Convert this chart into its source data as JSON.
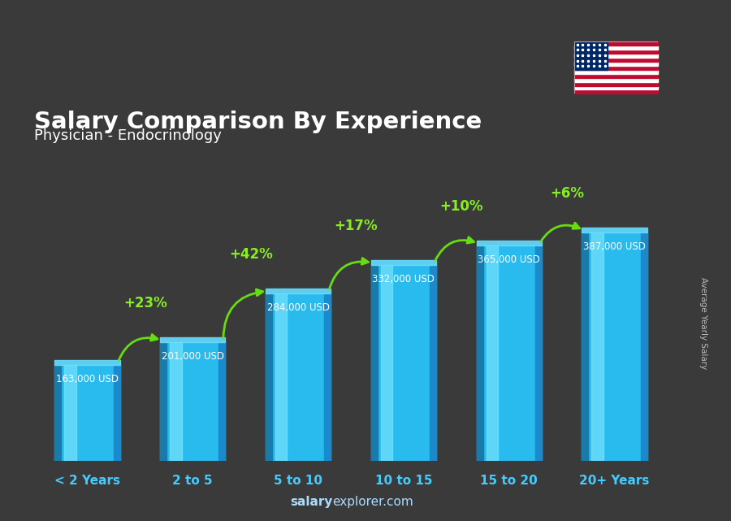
{
  "title_line1": "Salary Comparison By Experience",
  "title_line2": "Physician - Endocrinology",
  "categories": [
    "< 2 Years",
    "2 to 5",
    "5 to 10",
    "10 to 15",
    "15 to 20",
    "20+ Years"
  ],
  "values": [
    163000,
    201000,
    284000,
    332000,
    365000,
    387000
  ],
  "value_labels": [
    "163,000 USD",
    "201,000 USD",
    "284,000 USD",
    "332,000 USD",
    "365,000 USD",
    "387,000 USD"
  ],
  "pct_changes": [
    "+23%",
    "+42%",
    "+17%",
    "+10%",
    "+6%"
  ],
  "bar_color_main": "#29bbee",
  "bar_color_left": "#1a7aaa",
  "bar_color_highlight": "#88eeff",
  "bar_color_right": "#1a8acc",
  "bg_color": "#3a3a3a",
  "title_color": "#ffffff",
  "subtitle_color": "#ffffff",
  "label_color": "#ffffff",
  "pct_color": "#88ee22",
  "xlabel_color": "#44ccff",
  "watermark_salary": "salary",
  "watermark_explorer": "explorer.com",
  "ylabel_text": "Average Yearly Salary",
  "ylabel_color": "#bbbbbb",
  "arrow_color": "#66dd11"
}
